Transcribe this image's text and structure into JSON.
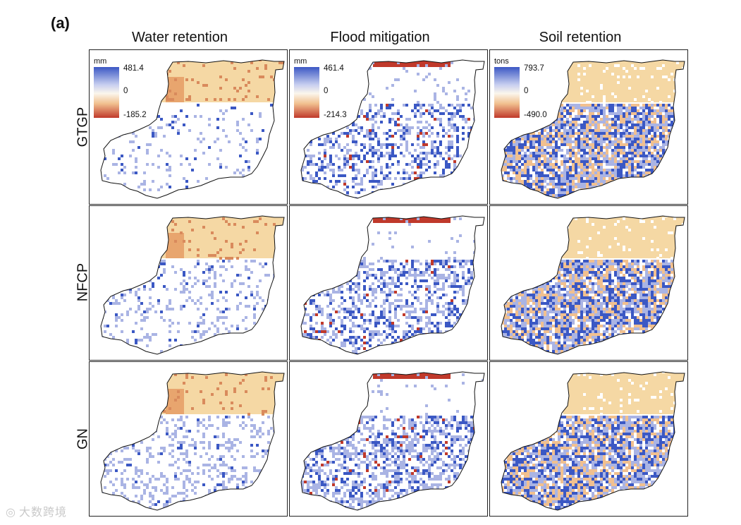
{
  "figure": {
    "panel_label": "(a)",
    "columns": [
      "Water retention",
      "Flood mitigation",
      "Soil retention"
    ],
    "rows": [
      "GTGP",
      "NFCP",
      "GN"
    ],
    "legends": [
      {
        "unit": "mm",
        "max": "481.4",
        "mid": "0",
        "min": "-185.2"
      },
      {
        "unit": "mm",
        "max": "461.4",
        "mid": "0",
        "min": "-214.3"
      },
      {
        "unit": "tons",
        "max": "793.7",
        "mid": "0",
        "min": "-490.0"
      }
    ],
    "colors": {
      "positive": "#3b58c4",
      "positive_light": "#aab4e4",
      "neutral": "#fbf6ec",
      "negative_light": "#f1c08f",
      "negative": "#c0392b",
      "north_fill": "#f5d8a4"
    },
    "watermark": "大数跨境"
  }
}
